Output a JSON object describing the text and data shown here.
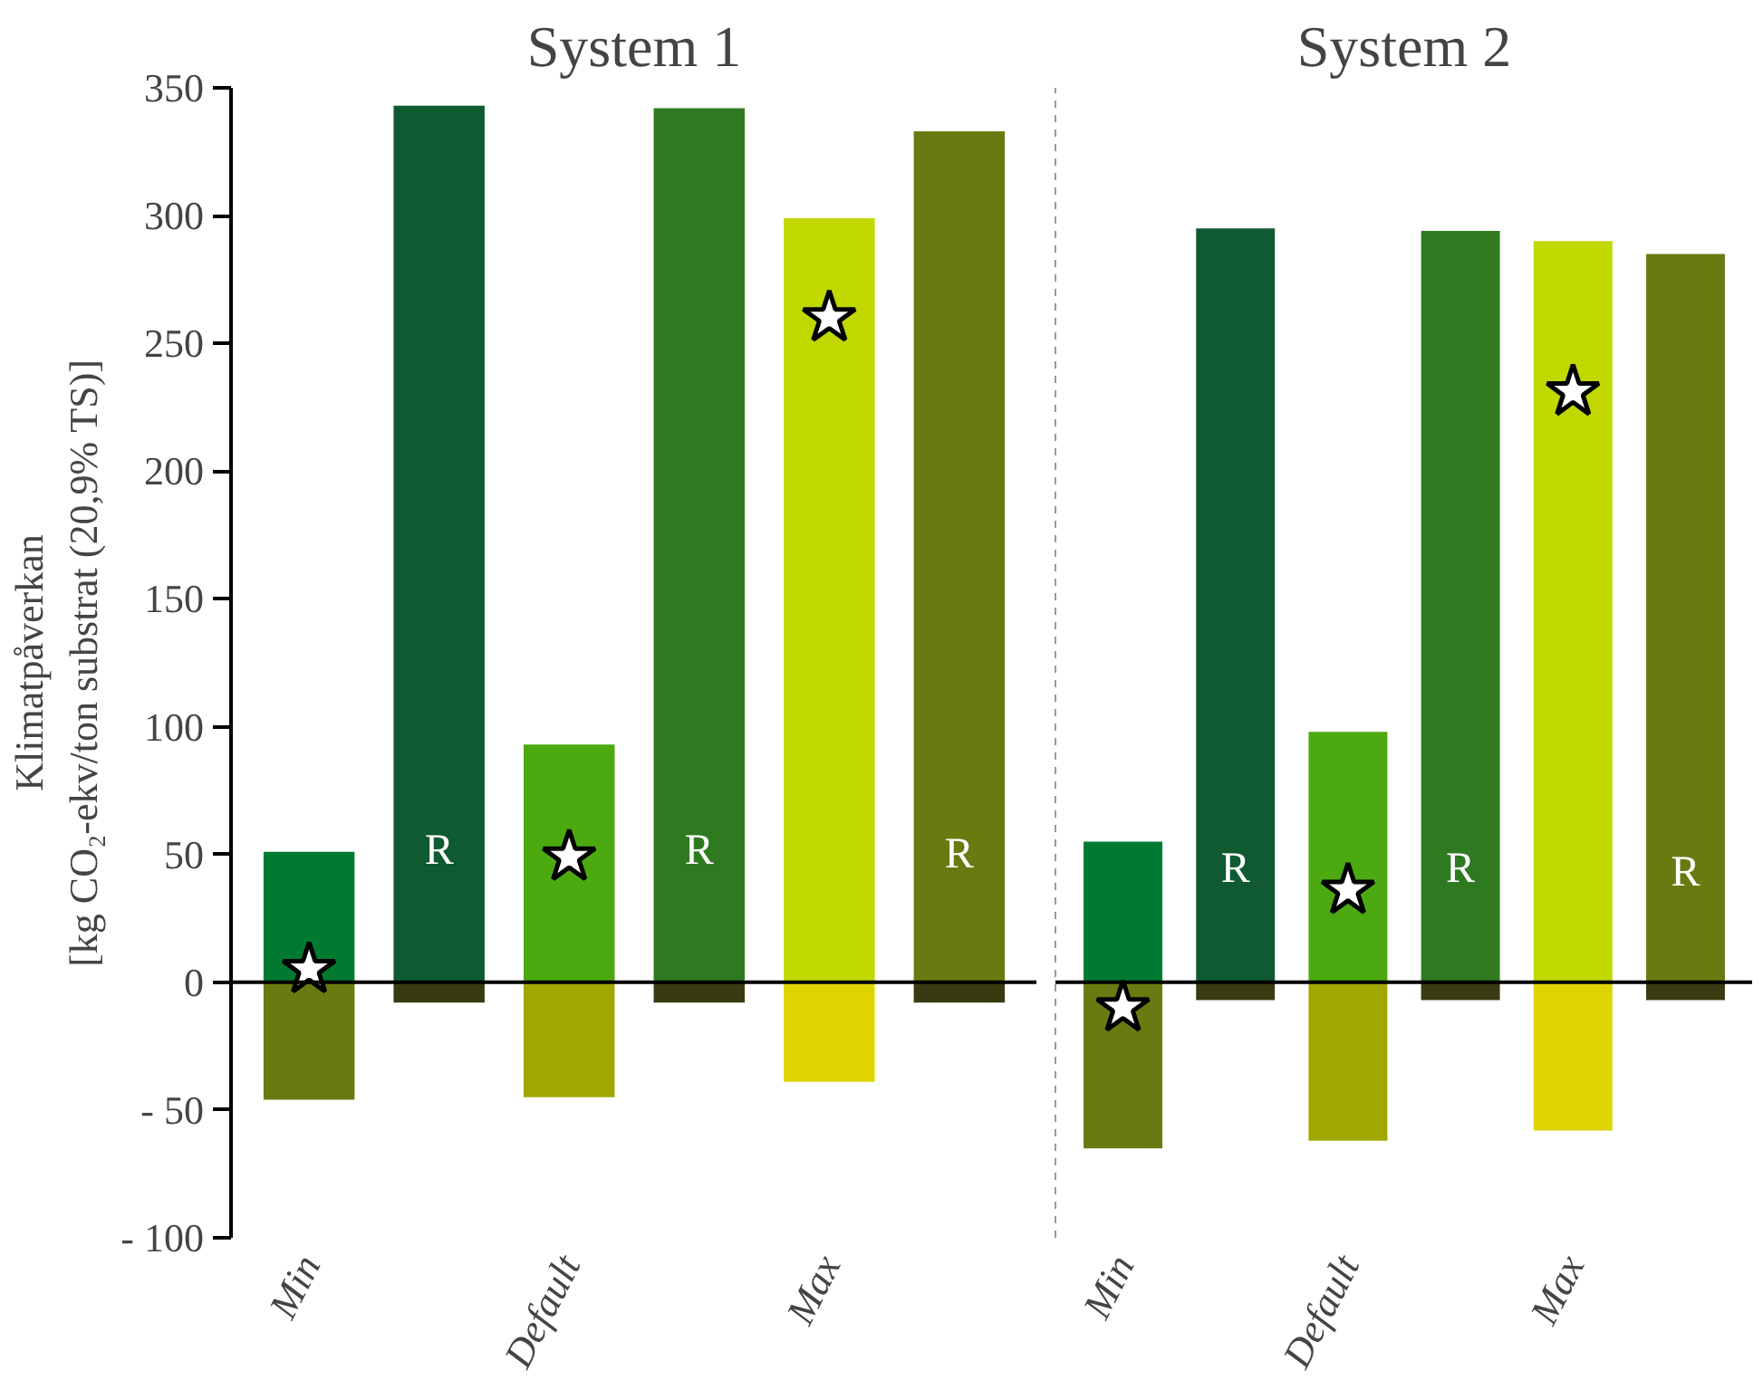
{
  "chart_data": [
    {
      "type": "bar",
      "stacked": true,
      "title": "System 1",
      "ylabel": "Klimatpåverkan\n[kg CO₂-ekv/ton substrat (20,9% TS)]",
      "categories": [
        "Min",
        null,
        "Default",
        null,
        "Max",
        null
      ],
      "ylim": [
        -100,
        350
      ],
      "yticks": [
        {
          "value": -100,
          "label": "- 100"
        },
        {
          "value": -50,
          "label": "- 50"
        },
        0,
        50,
        100,
        150,
        200,
        250,
        300,
        350
      ],
      "ref_lines": [
        {
          "axis": "y",
          "value": 0,
          "color": "#000000"
        }
      ],
      "series": [
        {
          "colors": [
            "#007a30",
            "#0f5a30",
            "#4caa10",
            "#2f7a20",
            "#c0d800",
            "#6a7a10"
          ],
          "values": [
            51,
            343,
            93,
            342,
            299,
            333
          ],
          "value_labels": [
            null,
            "R",
            null,
            "R",
            null,
            "R"
          ]
        },
        {
          "colors": [
            "#6b7a10",
            "#3a3a10",
            "#a0a800",
            "#3a3a10",
            "#e0d400",
            "#3a3a10"
          ],
          "values": [
            -46,
            -8,
            -45,
            -8,
            -39,
            -8
          ]
        },
        {
          "type": "scatter",
          "marker": "star",
          "color": "#ffffff",
          "values": [
            5,
            null,
            49,
            null,
            260,
            null
          ]
        }
      ]
    },
    {
      "type": "bar",
      "stacked": true,
      "title": "System 2",
      "tick_labels": "x",
      "categories": [
        "Min",
        null,
        "Default",
        null,
        "Max",
        null
      ],
      "ylim": [
        -100,
        350
      ],
      "ref_lines": [
        {
          "axis": "y",
          "value": 0,
          "color": "#000000"
        }
      ],
      "series": [
        {
          "colors": [
            "#007a30",
            "#0f5a30",
            "#4caa10",
            "#2f7a20",
            "#c0d800",
            "#6a7a10"
          ],
          "values": [
            55,
            295,
            98,
            294,
            290,
            285
          ],
          "value_labels": [
            null,
            "R",
            null,
            "R",
            null,
            "R"
          ]
        },
        {
          "colors": [
            "#6b7a10",
            "#3a3a10",
            "#a0a800",
            "#3a3a10",
            "#e0d400",
            "#3a3a10"
          ],
          "values": [
            -65,
            -7,
            -62,
            -7,
            -58,
            -7
          ]
        },
        {
          "type": "scatter",
          "marker": "star",
          "color": "#ffffff",
          "values": [
            -10,
            null,
            36,
            null,
            231,
            null
          ]
        }
      ]
    }
  ]
}
